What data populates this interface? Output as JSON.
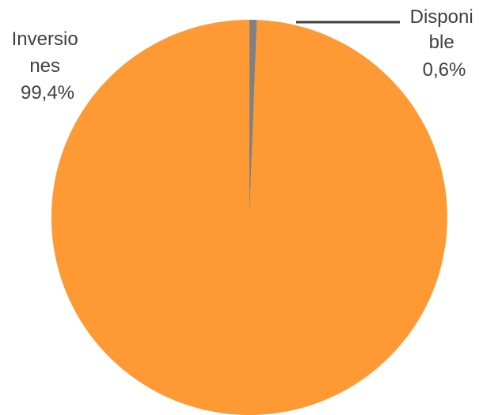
{
  "chart_data": {
    "type": "pie",
    "title": "",
    "slices": [
      {
        "label_lines": [
          "Inversio",
          "nes"
        ],
        "value_label": "99,4%",
        "value": 99.4,
        "color": "#FF9933"
      },
      {
        "label_lines": [
          "Disponi",
          "ble"
        ],
        "value_label": "0,6%",
        "value": 0.6,
        "color": "#808080"
      }
    ],
    "leader_line_color": "#404040",
    "legend": "none"
  }
}
